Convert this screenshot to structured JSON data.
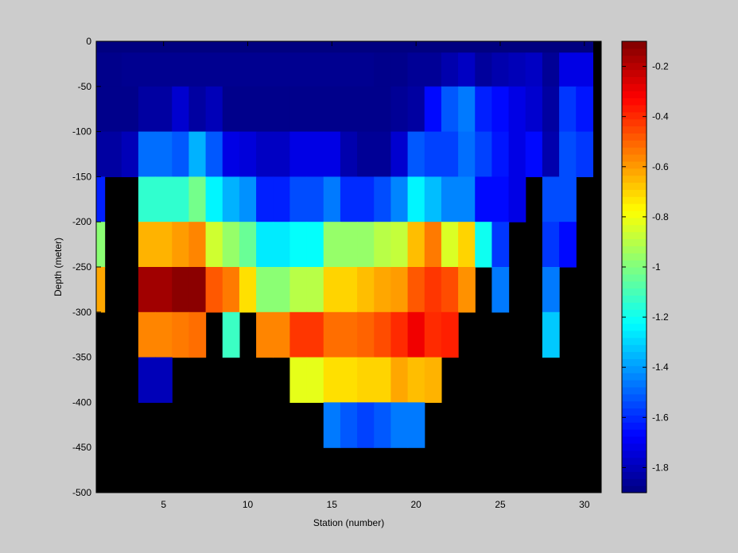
{
  "chart_data": {
    "type": "heatmap",
    "title": "",
    "xlabel": "Station (number)",
    "ylabel": "Depth (meter)",
    "xlim": [
      1,
      31
    ],
    "ylim": [
      -500,
      0
    ],
    "x_ticks": [
      5,
      10,
      15,
      20,
      25,
      30
    ],
    "y_ticks": [
      0,
      -50,
      -100,
      -150,
      -200,
      -250,
      -300,
      -350,
      -400,
      -450,
      -500
    ],
    "stations": [
      1,
      2,
      3,
      4,
      5,
      6,
      7,
      8,
      9,
      10,
      11,
      12,
      13,
      14,
      15,
      16,
      17,
      18,
      19,
      20,
      21,
      22,
      23,
      24,
      25,
      26,
      27,
      28,
      29,
      30
    ],
    "depth_bins": [
      0,
      -25,
      -75,
      -125,
      -175,
      -225,
      -275,
      -325,
      -375,
      -425,
      -475
    ],
    "no_data_color": "#000000",
    "colorbar": {
      "range": [
        -1.9,
        -0.1
      ],
      "ticks": [
        -0.2,
        -0.4,
        -0.6,
        -0.8,
        -1,
        -1.2,
        -1.4,
        -1.6,
        -1.8
      ],
      "colormap": "jet"
    },
    "values": [
      [
        -1.9,
        -1.9,
        -1.9,
        -1.9,
        -1.9,
        -1.9,
        -1.9,
        -1.9,
        -1.9,
        -1.9,
        -1.9,
        -1.9,
        -1.9,
        -1.9,
        -1.9,
        -1.9,
        -1.9,
        -1.9,
        -1.9,
        -1.9,
        -1.9,
        -1.9,
        -1.9,
        -1.9,
        -1.9,
        -1.9,
        -1.9,
        -1.9,
        -1.9,
        -1.9
      ],
      [
        -1.88,
        -1.88,
        -1.87,
        -1.87,
        -1.87,
        -1.87,
        -1.87,
        -1.87,
        -1.87,
        -1.87,
        -1.87,
        -1.87,
        -1.87,
        -1.87,
        -1.87,
        -1.87,
        -1.87,
        -1.88,
        -1.88,
        -1.86,
        -1.86,
        -1.82,
        -1.78,
        -1.85,
        -1.82,
        -1.8,
        -1.78,
        -1.86,
        -1.72,
        -1.72
      ],
      [
        -1.88,
        -1.88,
        -1.88,
        -1.84,
        -1.84,
        -1.76,
        -1.84,
        -1.8,
        -1.88,
        -1.88,
        -1.88,
        -1.88,
        -1.88,
        -1.88,
        -1.88,
        -1.88,
        -1.88,
        -1.88,
        -1.86,
        -1.84,
        -1.66,
        -1.52,
        -1.46,
        -1.62,
        -1.66,
        -1.72,
        -1.76,
        -1.84,
        -1.58,
        -1.64
      ],
      [
        -1.84,
        -1.84,
        -1.8,
        -1.48,
        -1.48,
        -1.52,
        -1.36,
        -1.52,
        -1.72,
        -1.74,
        -1.78,
        -1.78,
        -1.72,
        -1.72,
        -1.72,
        -1.82,
        -1.86,
        -1.86,
        -1.76,
        -1.52,
        -1.56,
        -1.56,
        -1.48,
        -1.56,
        -1.64,
        -1.72,
        -1.66,
        -1.82,
        -1.54,
        -1.58
      ],
      [
        -1.62,
        null,
        null,
        -1.14,
        -1.14,
        -1.14,
        -1.02,
        -1.24,
        -1.36,
        -1.42,
        -1.62,
        -1.62,
        -1.54,
        -1.54,
        -1.46,
        -1.6,
        -1.6,
        -1.54,
        -1.44,
        -1.24,
        -1.34,
        -1.44,
        -1.44,
        -1.66,
        -1.66,
        -1.72,
        null,
        -1.54,
        -1.54,
        null
      ],
      [
        -0.98,
        null,
        null,
        -0.64,
        -0.64,
        -0.6,
        -0.56,
        -0.86,
        -0.96,
        -1.04,
        -1.26,
        -1.26,
        -1.22,
        -1.22,
        -0.96,
        -0.96,
        -0.96,
        -0.9,
        -0.88,
        -0.66,
        -0.54,
        -0.84,
        -0.7,
        -1.2,
        -1.58,
        null,
        null,
        -1.58,
        -1.66,
        null
      ],
      [
        -0.62,
        null,
        null,
        -0.16,
        -0.16,
        -0.12,
        -0.12,
        -0.48,
        -0.54,
        -0.72,
        -0.98,
        -0.98,
        -0.9,
        -0.9,
        -0.7,
        -0.7,
        -0.66,
        -0.62,
        -0.6,
        -0.48,
        -0.42,
        -0.46,
        -0.58,
        null,
        -1.46,
        null,
        null,
        -1.46,
        null,
        null
      ],
      [
        null,
        null,
        null,
        -0.56,
        -0.56,
        -0.54,
        -0.52,
        null,
        -1.12,
        null,
        -0.56,
        -0.56,
        -0.42,
        -0.42,
        -0.52,
        -0.52,
        -0.5,
        -0.46,
        -0.4,
        -0.3,
        -0.4,
        -0.38,
        null,
        null,
        null,
        null,
        null,
        -1.32,
        null,
        null
      ],
      [
        null,
        null,
        null,
        -1.8,
        -1.8,
        null,
        null,
        null,
        null,
        null,
        null,
        null,
        -0.82,
        -0.82,
        -0.72,
        -0.72,
        -0.7,
        -0.7,
        -0.62,
        -0.66,
        -0.64,
        null,
        null,
        null,
        null,
        null,
        null,
        null,
        null,
        null
      ],
      [
        null,
        null,
        null,
        null,
        null,
        null,
        null,
        null,
        null,
        null,
        null,
        null,
        null,
        null,
        -1.46,
        -1.52,
        -1.56,
        -1.52,
        -1.46,
        -1.46,
        null,
        null,
        null,
        null,
        null,
        null,
        null,
        null,
        null,
        null
      ],
      [
        null,
        null,
        null,
        null,
        null,
        null,
        null,
        null,
        null,
        null,
        null,
        null,
        null,
        null,
        null,
        null,
        null,
        null,
        null,
        null,
        null,
        null,
        null,
        null,
        null,
        null,
        null,
        null,
        null,
        null
      ]
    ]
  }
}
